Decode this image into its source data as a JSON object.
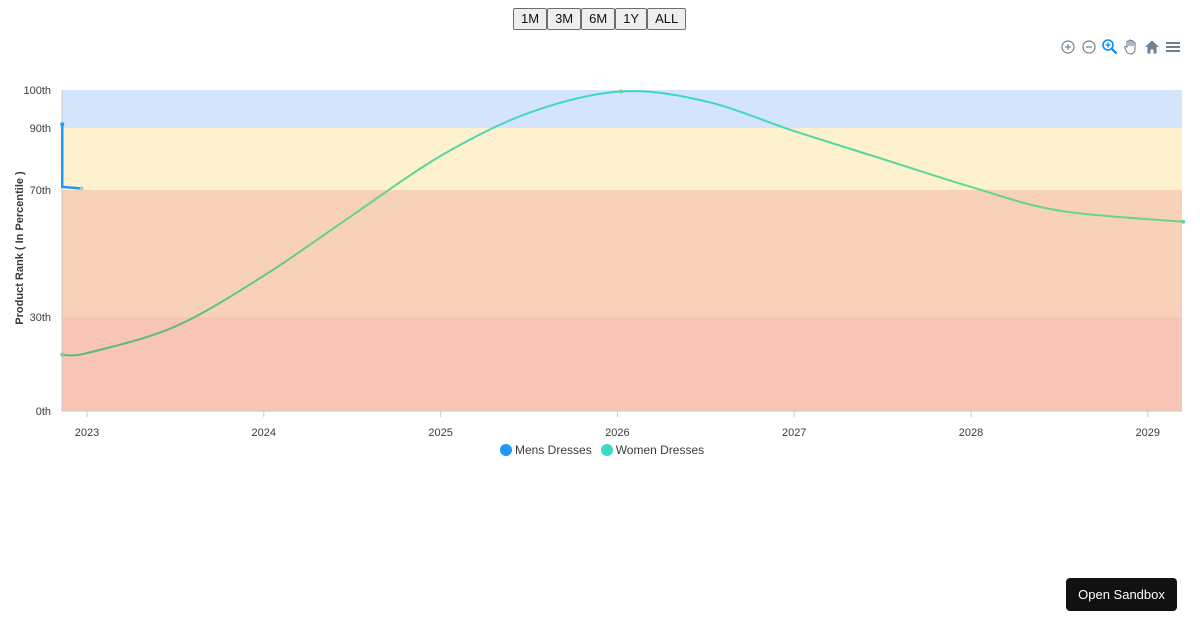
{
  "range_buttons": [
    "1M",
    "3M",
    "6M",
    "1Y",
    "ALL"
  ],
  "toolbar": {
    "icons": [
      "zoom-in-icon",
      "zoom-out-icon",
      "selection-zoom-icon",
      "pan-hand-icon",
      "reset-home-icon",
      "menu-icon"
    ],
    "active_color": "#008ffb",
    "inactive_color": "#6e8192"
  },
  "sandbox_button": "Open Sandbox",
  "colors": {
    "band_top": "#d4e5fb",
    "band_upper": "#fdf2cd",
    "band_mid": "#f8d2b8",
    "band_low": "#f8c4b6",
    "mens": "#2196f3",
    "women": "#3ad9c6",
    "women_line_end": "#6ad487"
  },
  "chart_data": {
    "type": "line",
    "ylabel": "Product Rank ( In Percentile )",
    "x_ticks": [
      "2023",
      "2024",
      "2025",
      "2026",
      "2027",
      "2028",
      "2029"
    ],
    "y_ticks": [
      {
        "label": "0th",
        "value": 0
      },
      {
        "label": "30th",
        "value": 30
      },
      {
        "label": "70th",
        "value": 70
      },
      {
        "label": "90th",
        "value": 90
      },
      {
        "label": "100th",
        "value": 100
      }
    ],
    "ylim": [
      0,
      100
    ],
    "xlim": [
      2022.86,
      2029.2
    ],
    "bands": [
      {
        "from": 90,
        "to": 100,
        "color_key": "band_top"
      },
      {
        "from": 70,
        "to": 90,
        "color_key": "band_upper"
      },
      {
        "from": 30,
        "to": 70,
        "color_key": "band_mid"
      },
      {
        "from": 0,
        "to": 30,
        "color_key": "band_low"
      }
    ],
    "series": [
      {
        "name": "Mens Dresses",
        "color_key": "mens",
        "points": [
          [
            2022.86,
            91
          ],
          [
            2022.86,
            71
          ],
          [
            2022.97,
            70.5
          ]
        ]
      },
      {
        "name": "Women Dresses",
        "color_key": "women",
        "points": [
          [
            2022.86,
            18
          ],
          [
            2023.0,
            18.5
          ],
          [
            2023.5,
            27
          ],
          [
            2024.0,
            43
          ],
          [
            2024.5,
            62
          ],
          [
            2025.0,
            81
          ],
          [
            2025.5,
            94
          ],
          [
            2026.02,
            99.6
          ],
          [
            2026.5,
            97
          ],
          [
            2027.0,
            89
          ],
          [
            2027.5,
            80
          ],
          [
            2028.0,
            71
          ],
          [
            2028.5,
            63.5
          ],
          [
            2029.2,
            60
          ]
        ]
      }
    ],
    "legend_position": "bottom",
    "grid": false
  }
}
